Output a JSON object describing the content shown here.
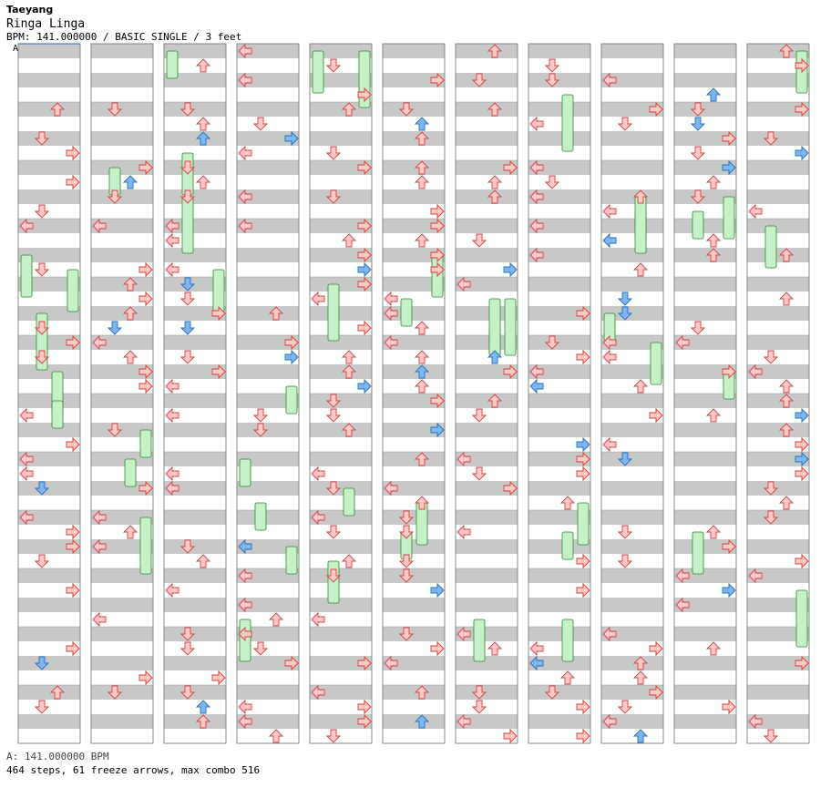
{
  "header": {
    "artist": "Taeyang",
    "title": "Ringa Linga",
    "meta": "BPM: 141.000000 / BASIC SINGLE / 3 feet",
    "bpm_marker": "A"
  },
  "footer": {
    "bpm_line": "A: 141.000000 BPM",
    "stats_line": "464 steps, 61 freeze arrows, max combo 516"
  },
  "chart_data": {
    "type": "step-chart",
    "columns": 11,
    "measures_per_column": 12,
    "steps": 464,
    "freeze_arrows": 61,
    "max_combo": 516,
    "colors": {
      "stripe": "#c8c8c8",
      "background": "#ffffff",
      "border": "#888888",
      "red_fill": "#ffc8c8",
      "red_stroke": "#d04040",
      "blue_fill": "#7cb8f0",
      "blue_stroke": "#2c6cc0",
      "freeze_fill": "#c8f0c8",
      "freeze_stroke": "#2a8a2a"
    }
  }
}
